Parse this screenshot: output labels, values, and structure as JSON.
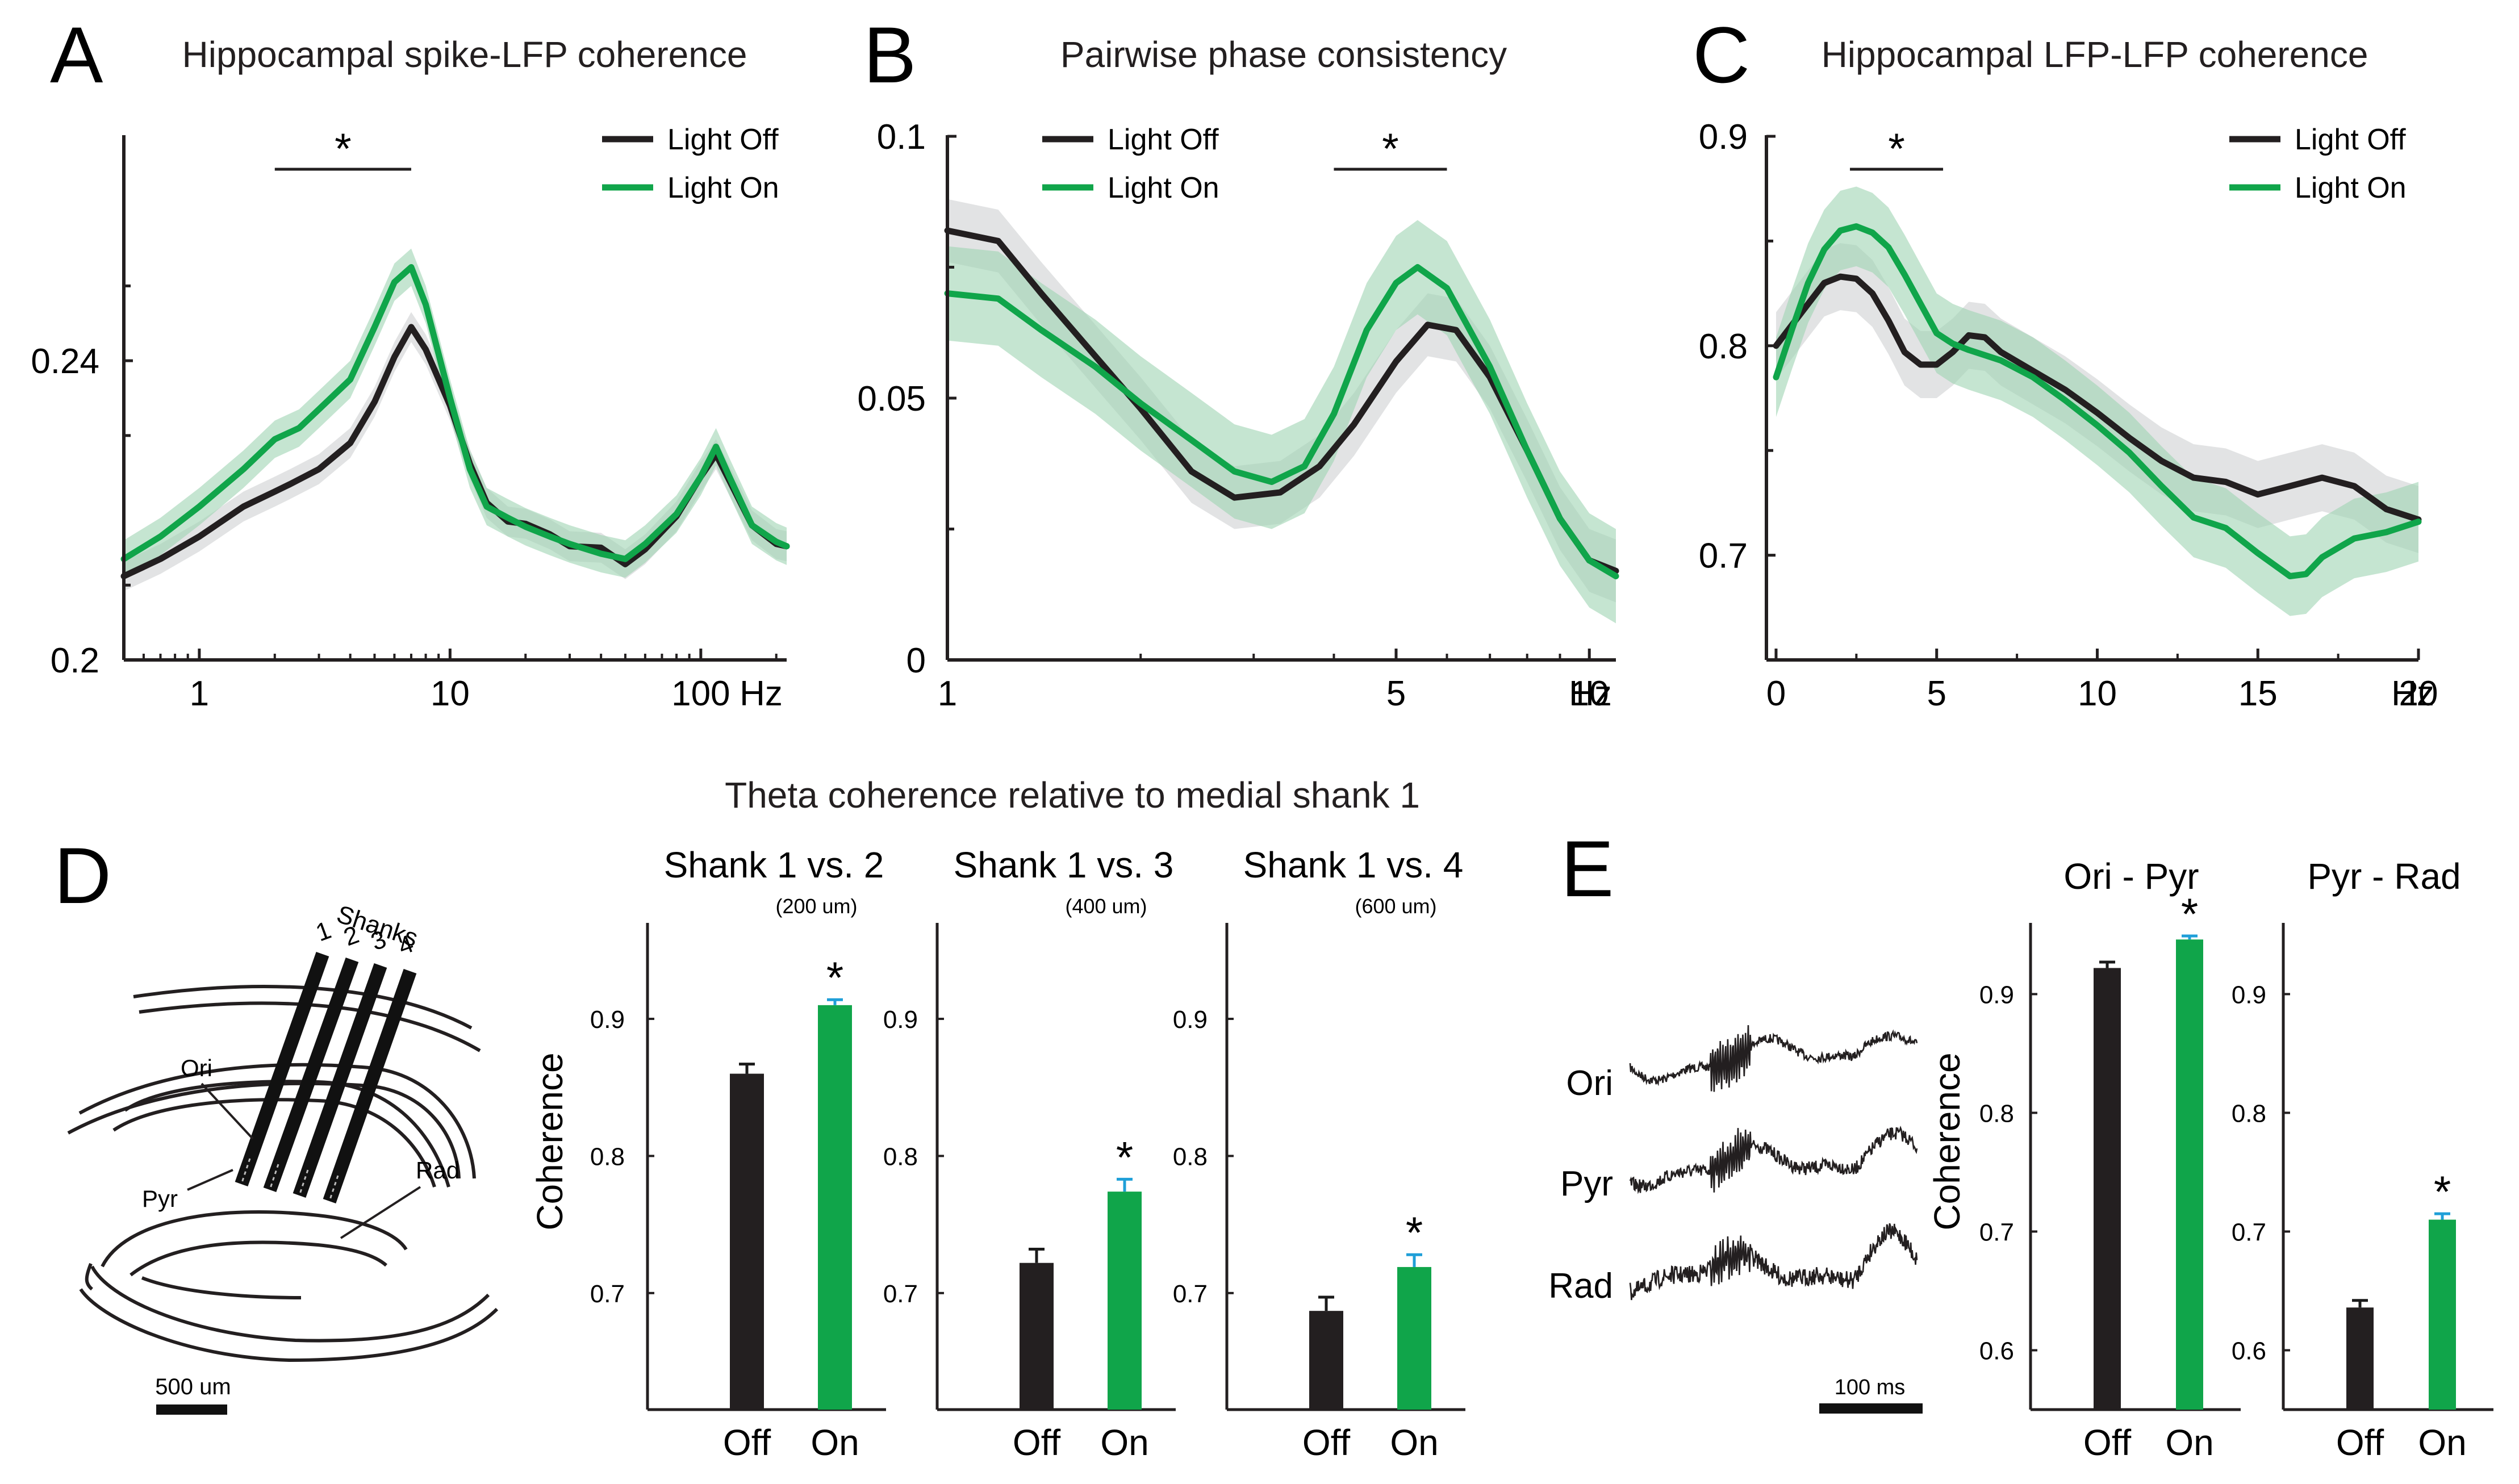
{
  "colors": {
    "off": "#231f20",
    "on": "#10a54a",
    "off_band": "#cfd0d2",
    "on_band": "#9fd3b2",
    "err_off": "#1a1a1a",
    "err_on": "#1f9fd8"
  },
  "panel_labels": {
    "A": "A",
    "B": "B",
    "C": "C",
    "D": "D",
    "E": "E"
  },
  "legend": {
    "off": "Light Off",
    "on": "Light On"
  },
  "sig": "*",
  "chart_data": [
    {
      "id": "A",
      "type": "line",
      "xscale": "log",
      "title": "Hippocampal spike-LFP coherence",
      "xlabel": "Hz",
      "ylabel": "",
      "xticks": [
        1,
        10,
        100
      ],
      "xticklabels": [
        "1",
        "10",
        "100"
      ],
      "xlim": [
        0.5,
        220
      ],
      "ylim": [
        0.2,
        0.27
      ],
      "yticks": [
        0.2,
        0.24
      ],
      "yticklabels": [
        "0.2",
        "0.24"
      ],
      "sig_range": [
        2,
        7
      ],
      "series": [
        {
          "name": "Light Off",
          "band": 0.002,
          "points": [
            [
              0.5,
              0.2112
            ],
            [
              0.7,
              0.2135
            ],
            [
              1,
              0.2165
            ],
            [
              1.5,
              0.2205
            ],
            [
              2,
              0.2225
            ],
            [
              2.3,
              0.2235
            ],
            [
              3,
              0.2255
            ],
            [
              4,
              0.229
            ],
            [
              5,
              0.2345
            ],
            [
              6,
              0.2405
            ],
            [
              7,
              0.2445
            ],
            [
              8,
              0.2415
            ],
            [
              10,
              0.234
            ],
            [
              12,
              0.2262
            ],
            [
              14,
              0.221
            ],
            [
              17,
              0.2185
            ],
            [
              20,
              0.2182
            ],
            [
              25,
              0.2168
            ],
            [
              30,
              0.2152
            ],
            [
              40,
              0.215
            ],
            [
              50,
              0.2128
            ],
            [
              60,
              0.2148
            ],
            [
              80,
              0.2192
            ],
            [
              100,
              0.2245
            ],
            [
              115,
              0.2275
            ],
            [
              130,
              0.224
            ],
            [
              160,
              0.218
            ],
            [
              200,
              0.2155
            ],
            [
              220,
              0.2152
            ]
          ]
        },
        {
          "name": "Light On",
          "band": 0.0025,
          "points": [
            [
              0.5,
              0.2135
            ],
            [
              0.7,
              0.2165
            ],
            [
              1,
              0.2205
            ],
            [
              1.5,
              0.2255
            ],
            [
              2,
              0.2295
            ],
            [
              2.5,
              0.231
            ],
            [
              3,
              0.2335
            ],
            [
              4,
              0.2375
            ],
            [
              5,
              0.2445
            ],
            [
              6,
              0.2505
            ],
            [
              7,
              0.2525
            ],
            [
              8,
              0.2475
            ],
            [
              10,
              0.235
            ],
            [
              12,
              0.2255
            ],
            [
              14,
              0.2205
            ],
            [
              17,
              0.219
            ],
            [
              20,
              0.2178
            ],
            [
              25,
              0.2165
            ],
            [
              30,
              0.2155
            ],
            [
              40,
              0.2142
            ],
            [
              50,
              0.2135
            ],
            [
              60,
              0.2155
            ],
            [
              80,
              0.2195
            ],
            [
              100,
              0.2245
            ],
            [
              115,
              0.2285
            ],
            [
              130,
              0.2245
            ],
            [
              160,
              0.218
            ],
            [
              200,
              0.2158
            ],
            [
              220,
              0.2152
            ]
          ]
        }
      ]
    },
    {
      "id": "B",
      "type": "line",
      "xscale": "log",
      "title": "Pairwise phase consistency",
      "xlabel": "Hz",
      "ylabel": "",
      "xticks": [
        1,
        5,
        10
      ],
      "xticklabels": [
        "1",
        "5",
        "10"
      ],
      "xlim": [
        1,
        11
      ],
      "ylim": [
        0,
        0.1
      ],
      "yticks": [
        0,
        0.05,
        0.1
      ],
      "yticklabels": [
        "0",
        "0.05",
        "0.1"
      ],
      "sig_range": [
        4,
        6
      ],
      "series": [
        {
          "name": "Light Off",
          "band": 0.006,
          "points": [
            [
              1,
              0.082
            ],
            [
              1.2,
              0.08
            ],
            [
              1.4,
              0.07
            ],
            [
              1.7,
              0.058
            ],
            [
              2,
              0.048
            ],
            [
              2.4,
              0.036
            ],
            [
              2.8,
              0.031
            ],
            [
              3.3,
              0.032
            ],
            [
              3.8,
              0.037
            ],
            [
              4.3,
              0.045
            ],
            [
              5,
              0.057
            ],
            [
              5.6,
              0.064
            ],
            [
              6.2,
              0.063
            ],
            [
              7,
              0.054
            ],
            [
              8,
              0.04
            ],
            [
              9,
              0.027
            ],
            [
              10,
              0.019
            ],
            [
              11,
              0.017
            ]
          ]
        },
        {
          "name": "Light On",
          "band": 0.009,
          "points": [
            [
              1,
              0.07
            ],
            [
              1.2,
              0.069
            ],
            [
              1.4,
              0.063
            ],
            [
              1.7,
              0.056
            ],
            [
              2,
              0.049
            ],
            [
              2.4,
              0.042
            ],
            [
              2.8,
              0.036
            ],
            [
              3.2,
              0.034
            ],
            [
              3.6,
              0.037
            ],
            [
              4,
              0.047
            ],
            [
              4.5,
              0.063
            ],
            [
              5,
              0.072
            ],
            [
              5.4,
              0.075
            ],
            [
              6,
              0.071
            ],
            [
              7,
              0.056
            ],
            [
              8,
              0.04
            ],
            [
              9,
              0.027
            ],
            [
              10,
              0.019
            ],
            [
              11,
              0.016
            ]
          ]
        }
      ]
    },
    {
      "id": "C",
      "type": "line",
      "xscale": "linear",
      "title": "Hippocampal LFP-LFP coherence",
      "xlabel": "Hz",
      "ylabel": "",
      "xticks": [
        0,
        5,
        10,
        15,
        20
      ],
      "xticklabels": [
        "0",
        "5",
        "10",
        "15",
        "20"
      ],
      "xlim": [
        -0.3,
        20
      ],
      "ylim": [
        0.65,
        0.9
      ],
      "yticks": [
        0.7,
        0.8,
        0.9
      ],
      "yticklabels": [
        "0.7",
        "0.8",
        "0.9"
      ],
      "sig_range": [
        2.3,
        5.2
      ],
      "series": [
        {
          "name": "Light Off",
          "band": 0.016,
          "points": [
            [
              0,
              0.8
            ],
            [
              0.5,
              0.81
            ],
            [
              1,
              0.82
            ],
            [
              1.5,
              0.83
            ],
            [
              2,
              0.833
            ],
            [
              2.5,
              0.832
            ],
            [
              3,
              0.825
            ],
            [
              3.5,
              0.812
            ],
            [
              4,
              0.797
            ],
            [
              4.5,
              0.791
            ],
            [
              5,
              0.791
            ],
            [
              5.5,
              0.797
            ],
            [
              6,
              0.805
            ],
            [
              6.5,
              0.804
            ],
            [
              7,
              0.797
            ],
            [
              8,
              0.788
            ],
            [
              9,
              0.779
            ],
            [
              10,
              0.768
            ],
            [
              11,
              0.756
            ],
            [
              12,
              0.745
            ],
            [
              13,
              0.737
            ],
            [
              14,
              0.735
            ],
            [
              15,
              0.729
            ],
            [
              16,
              0.733
            ],
            [
              17,
              0.737
            ],
            [
              18,
              0.733
            ],
            [
              19,
              0.722
            ],
            [
              20,
              0.717
            ]
          ]
        },
        {
          "name": "Light On",
          "band": 0.019,
          "points": [
            [
              0,
              0.785
            ],
            [
              0.5,
              0.808
            ],
            [
              1,
              0.83
            ],
            [
              1.5,
              0.846
            ],
            [
              2,
              0.855
            ],
            [
              2.5,
              0.857
            ],
            [
              3,
              0.854
            ],
            [
              3.5,
              0.847
            ],
            [
              4,
              0.834
            ],
            [
              4.5,
              0.82
            ],
            [
              5,
              0.806
            ],
            [
              5.5,
              0.801
            ],
            [
              6,
              0.798
            ],
            [
              7,
              0.793
            ],
            [
              8,
              0.785
            ],
            [
              9,
              0.774
            ],
            [
              10,
              0.762
            ],
            [
              11,
              0.749
            ],
            [
              12,
              0.733
            ],
            [
              13,
              0.718
            ],
            [
              14,
              0.713
            ],
            [
              15,
              0.701
            ],
            [
              16,
              0.69
            ],
            [
              16.5,
              0.691
            ],
            [
              17,
              0.699
            ],
            [
              18,
              0.708
            ],
            [
              19,
              0.711
            ],
            [
              20,
              0.716
            ]
          ]
        }
      ]
    },
    {
      "id": "D",
      "type": "bar",
      "title": "Theta coherence relative to medial shank 1",
      "ylabel": "Coherence",
      "ylim": [
        0.615,
        0.97
      ],
      "yticks": [
        0.7,
        0.8,
        0.9
      ],
      "yticklabels": [
        "0.7",
        "0.8",
        "0.9"
      ],
      "panels": [
        {
          "title": "Shank 1 vs. 2",
          "subtitle": "(200 um)",
          "categories": [
            "Off",
            "On"
          ],
          "values": [
            0.86,
            0.91
          ],
          "errors": [
            0.007,
            0.004
          ],
          "sig": [
            false,
            true
          ]
        },
        {
          "title": "Shank 1 vs. 3",
          "subtitle": "(400 um)",
          "categories": [
            "Off",
            "On"
          ],
          "values": [
            0.722,
            0.774
          ],
          "errors": [
            0.01,
            0.009
          ],
          "sig": [
            false,
            true
          ]
        },
        {
          "title": "Shank 1 vs. 4",
          "subtitle": "(600 um)",
          "categories": [
            "Off",
            "On"
          ],
          "values": [
            0.687,
            0.719
          ],
          "errors": [
            0.01,
            0.009
          ],
          "sig": [
            false,
            true
          ]
        }
      ]
    },
    {
      "id": "E",
      "type": "bar",
      "ylabel": "Coherence",
      "ylim": [
        0.55,
        0.96
      ],
      "yticks": [
        0.6,
        0.7,
        0.8,
        0.9
      ],
      "yticklabels": [
        "0.6",
        "0.7",
        "0.8",
        "0.9"
      ],
      "panels": [
        {
          "title": "Ori - Pyr",
          "categories": [
            "Off",
            "On"
          ],
          "values": [
            0.922,
            0.946
          ],
          "errors": [
            0.005,
            0.003
          ],
          "sig": [
            false,
            true
          ]
        },
        {
          "title": "Pyr - Rad",
          "categories": [
            "Off",
            "On"
          ],
          "values": [
            0.636,
            0.71
          ],
          "errors": [
            0.006,
            0.005
          ],
          "sig": [
            false,
            true
          ]
        }
      ]
    }
  ],
  "schematic": {
    "shanks_label": "Shanks",
    "shank_numbers": [
      "1",
      "2",
      "3",
      "4"
    ],
    "layers": [
      "Ori",
      "Pyr",
      "Rad"
    ],
    "scale_label": "500 um"
  },
  "traces": {
    "labels": [
      "Ori",
      "Pyr",
      "Rad"
    ],
    "scale_label": "100 ms"
  }
}
